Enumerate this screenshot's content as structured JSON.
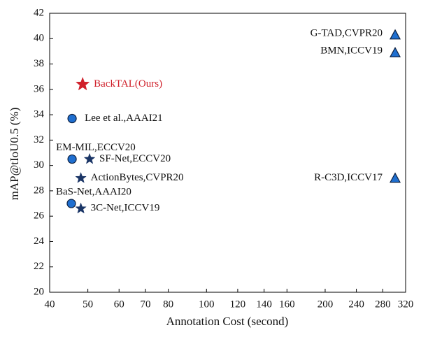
{
  "chart_data": {
    "type": "scatter",
    "x_label": "Annotation Cost (second)",
    "y_label": "mAP@tIoU0.5 (%)",
    "xscale": "log",
    "xlim": [
      40,
      320
    ],
    "xticks": [
      40,
      50,
      60,
      70,
      80,
      100,
      120,
      140,
      160,
      200,
      240,
      280,
      320
    ],
    "ylim": [
      20,
      42
    ],
    "yticks": [
      20,
      22,
      24,
      26,
      28,
      30,
      32,
      34,
      36,
      38,
      40,
      42
    ],
    "points": [
      {
        "label": "G-TAD,CVPR20",
        "x": 301,
        "y": 40.3,
        "marker": "triangle",
        "color": "#1f6fd0"
      },
      {
        "label": "BMN,ICCV19",
        "x": 301,
        "y": 38.9,
        "marker": "triangle",
        "color": "#1f6fd0"
      },
      {
        "label": "R-C3D,ICCV17",
        "x": 301,
        "y": 29.0,
        "marker": "triangle",
        "color": "#1f6fd0"
      },
      {
        "label": "BackTAL(Ours)",
        "x": 48.5,
        "y": 36.4,
        "marker": "star",
        "color": "#d0202a"
      },
      {
        "label": "Lee et al.,AAAI21",
        "x": 45.6,
        "y": 33.7,
        "marker": "circle",
        "color": "#1f6fd0"
      },
      {
        "label": "EM-MIL,ECCV20",
        "x": 45.6,
        "y": 30.5,
        "marker": "circle",
        "color": "#1f6fd0"
      },
      {
        "label": "SF-Net,ECCV20",
        "x": 50.5,
        "y": 30.5,
        "marker": "star",
        "color": "#1a3566"
      },
      {
        "label": "ActionBytes,CVPR20",
        "x": 48.0,
        "y": 29.0,
        "marker": "star",
        "color": "#1a3566"
      },
      {
        "label": "BaS-Net,AAAI20",
        "x": 45.4,
        "y": 27.0,
        "marker": "circle",
        "color": "#1f6fd0"
      },
      {
        "label": "3C-Net,ICCV19",
        "x": 48.0,
        "y": 26.6,
        "marker": "star",
        "color": "#1a3566"
      }
    ]
  }
}
